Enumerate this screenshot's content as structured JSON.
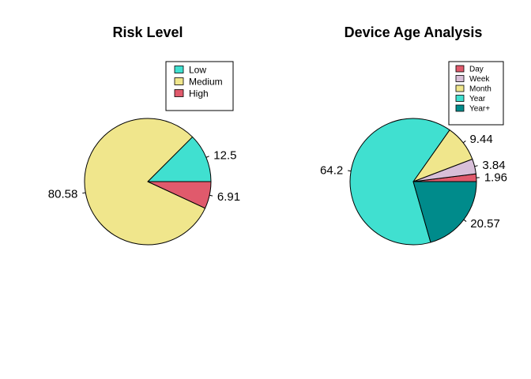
{
  "chart_data": [
    {
      "type": "pie",
      "title": "Risk Level",
      "legend_position": "top-right",
      "slices": [
        {
          "label": "Low",
          "value": 12.5,
          "color": "#40E0D0"
        },
        {
          "label": "Medium",
          "value": 80.58,
          "color": "#F0E68C"
        },
        {
          "label": "High",
          "value": 6.91,
          "color": "#E05A6C"
        }
      ]
    },
    {
      "type": "pie",
      "title": "Device Age Analysis",
      "legend_position": "top-right",
      "slices": [
        {
          "label": "Day",
          "value": 1.96,
          "color": "#E05A6C"
        },
        {
          "label": "Week",
          "value": 3.84,
          "color": "#D8BFD8"
        },
        {
          "label": "Month",
          "value": 9.44,
          "color": "#F0E68C"
        },
        {
          "label": "Year",
          "value": 64.2,
          "color": "#40E0D0"
        },
        {
          "label": "Year+",
          "value": 20.57,
          "color": "#008B8B"
        }
      ]
    }
  ]
}
